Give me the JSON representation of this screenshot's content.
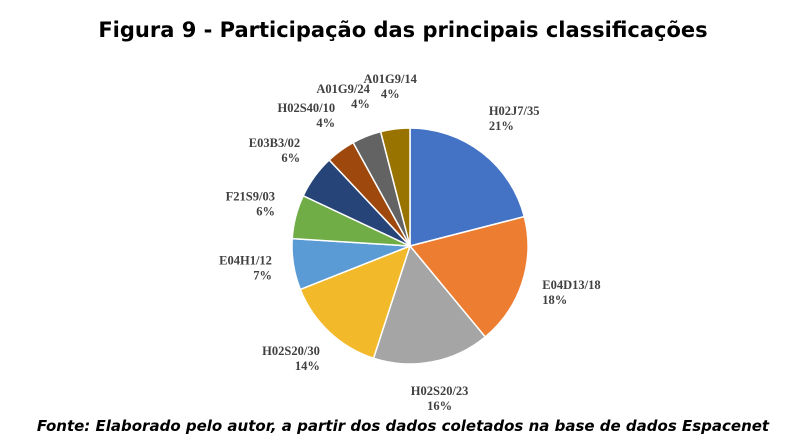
{
  "chart_data": {
    "type": "pie",
    "title": "Figura 9 - Participação das principais classificações",
    "source": "Fonte: Elaborado pelo autor, a partir dos dados coletados na base de dados Espacenet",
    "categories": [
      "H02J7/35",
      "E04D13/18",
      "H02S20/23",
      "H02S20/30",
      "E04H1/12",
      "F21S9/03",
      "E03B3/02",
      "H02S40/10",
      "A01G9/24",
      "A01G9/14"
    ],
    "values": [
      21,
      18,
      16,
      14,
      7,
      6,
      6,
      4,
      4,
      4
    ],
    "value_labels": [
      "21%",
      "18%",
      "16%",
      "14%",
      "7%",
      "6%",
      "6%",
      "4%",
      "4%",
      "4%"
    ],
    "colors": [
      "#4472c4",
      "#ed7d31",
      "#a5a5a5",
      "#f2b92a",
      "#5b9bd5",
      "#70ad47",
      "#264478",
      "#9e480e",
      "#636363",
      "#997300"
    ]
  }
}
